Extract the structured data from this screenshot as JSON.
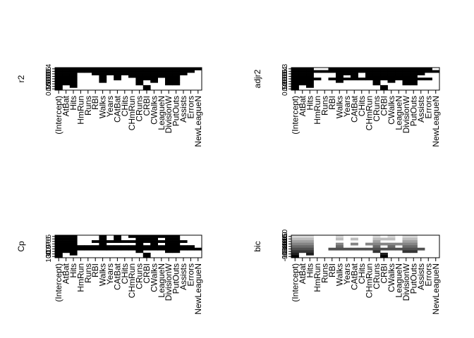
{
  "chart_data": [
    {
      "type": "heatmap",
      "ylabel": "r2",
      "xlabels": [
        "(Intercept)",
        "AtBat",
        "Hits",
        "HmRun",
        "Runs",
        "RBI",
        "Walks",
        "Years",
        "CAtBat",
        "CHits",
        "CHmRun",
        "CRuns",
        "CRBI",
        "CWalks",
        "LeagueN",
        "DivisionW",
        "PutOuts",
        "Assists",
        "Errors",
        "NewLeagueN"
      ],
      "ytick_labels": [
        "0.4",
        "0.5",
        "0.5",
        "0.5",
        "0.5",
        "0.5",
        "0.5",
        "0.5",
        "0.55"
      ],
      "shade_style": "binary-dark",
      "rows": [
        [
          1,
          1,
          1,
          1,
          1,
          1,
          1,
          1,
          1,
          1,
          1,
          1,
          1,
          1,
          1,
          1,
          1,
          1,
          1,
          1
        ],
        [
          1,
          1,
          1,
          1,
          1,
          1,
          1,
          1,
          1,
          1,
          1,
          1,
          1,
          1,
          1,
          1,
          1,
          1,
          1,
          0
        ],
        [
          1,
          1,
          1,
          0,
          0,
          1,
          1,
          1,
          1,
          1,
          1,
          1,
          1,
          1,
          1,
          1,
          1,
          1,
          0,
          0
        ],
        [
          1,
          1,
          1,
          0,
          0,
          0,
          1,
          0,
          1,
          0,
          1,
          1,
          1,
          1,
          1,
          1,
          1,
          0,
          0,
          0
        ],
        [
          1,
          1,
          1,
          0,
          0,
          0,
          1,
          0,
          1,
          0,
          0,
          1,
          1,
          1,
          0,
          1,
          1,
          0,
          0,
          0
        ],
        [
          1,
          1,
          1,
          0,
          0,
          0,
          1,
          0,
          0,
          0,
          0,
          1,
          0,
          1,
          0,
          1,
          1,
          0,
          0,
          0
        ],
        [
          1,
          1,
          1,
          0,
          0,
          0,
          0,
          0,
          0,
          0,
          0,
          1,
          0,
          0,
          0,
          1,
          1,
          0,
          0,
          0
        ],
        [
          1,
          0,
          1,
          0,
          0,
          0,
          0,
          0,
          0,
          0,
          0,
          0,
          1,
          0,
          0,
          0,
          0,
          0,
          0,
          0
        ],
        [
          1,
          0,
          0,
          0,
          0,
          0,
          0,
          0,
          0,
          0,
          0,
          0,
          1,
          0,
          0,
          0,
          0,
          0,
          0,
          0
        ]
      ]
    },
    {
      "type": "heatmap",
      "ylabel": "adjr2",
      "xlabels": [
        "(Intercept)",
        "AtBat",
        "Hits",
        "HmRun",
        "Runs",
        "RBI",
        "Walks",
        "Years",
        "CAtBat",
        "CHits",
        "CHmRun",
        "CRuns",
        "CRBI",
        "CWalks",
        "LeagueN",
        "DivisionW",
        "PutOuts",
        "Assists",
        "Errors",
        "NewLeagueN"
      ],
      "ytick_labels": [
        "0.3",
        "0.4",
        "0.5",
        "0.5",
        "0.5",
        "0.5",
        "0.5",
        "0.5",
        "0.52"
      ],
      "shade_style": "binary-dark",
      "rows": [
        [
          1,
          1,
          1,
          0,
          0,
          1,
          1,
          1,
          1,
          1,
          1,
          1,
          1,
          1,
          1,
          1,
          1,
          1,
          1,
          0
        ],
        [
          1,
          1,
          1,
          1,
          1,
          1,
          1,
          1,
          1,
          1,
          1,
          1,
          1,
          1,
          1,
          1,
          1,
          1,
          1,
          1
        ],
        [
          1,
          1,
          1,
          0,
          0,
          0,
          1,
          1,
          1,
          0,
          1,
          1,
          1,
          1,
          1,
          1,
          1,
          1,
          0,
          0
        ],
        [
          1,
          1,
          1,
          0,
          0,
          0,
          1,
          0,
          1,
          0,
          1,
          1,
          1,
          1,
          1,
          1,
          1,
          0,
          0,
          0
        ],
        [
          1,
          1,
          1,
          1,
          0,
          1,
          1,
          1,
          1,
          1,
          1,
          1,
          1,
          1,
          1,
          1,
          1,
          1,
          1,
          0
        ],
        [
          1,
          1,
          1,
          0,
          0,
          0,
          1,
          0,
          0,
          0,
          0,
          1,
          0,
          1,
          0,
          1,
          1,
          0,
          0,
          0
        ],
        [
          1,
          1,
          1,
          0,
          0,
          0,
          0,
          0,
          0,
          0,
          0,
          1,
          0,
          0,
          0,
          1,
          1,
          0,
          0,
          0
        ],
        [
          1,
          0,
          1,
          0,
          0,
          0,
          0,
          0,
          0,
          0,
          0,
          0,
          1,
          0,
          0,
          0,
          0,
          0,
          0,
          0
        ],
        [
          1,
          0,
          0,
          0,
          0,
          0,
          0,
          0,
          0,
          0,
          0,
          0,
          1,
          0,
          0,
          0,
          0,
          0,
          0,
          0
        ]
      ]
    },
    {
      "type": "heatmap",
      "ylabel": "Cp",
      "xlabels": [
        "(Intercept)",
        "AtBat",
        "Hits",
        "HmRun",
        "Runs",
        "RBI",
        "Walks",
        "Years",
        "CAtBat",
        "CHits",
        "CHmRun",
        "CRuns",
        "CRBI",
        "CWalks",
        "LeagueN",
        "DivisionW",
        "PutOuts",
        "Assists",
        "Errors",
        "NewLeagueN"
      ],
      "ytick_labels": [
        "5",
        "6",
        "6",
        "7",
        "9",
        "10",
        "10",
        "30",
        "100"
      ],
      "shade_style": "binary-dark",
      "rows": [
        [
          1,
          1,
          1,
          0,
          0,
          0,
          1,
          0,
          1,
          0,
          1,
          1,
          1,
          1,
          1,
          1,
          1,
          0,
          0,
          0
        ],
        [
          1,
          1,
          1,
          0,
          0,
          0,
          1,
          0,
          1,
          0,
          0,
          1,
          1,
          1,
          0,
          1,
          1,
          0,
          0,
          0
        ],
        [
          1,
          1,
          1,
          0,
          0,
          1,
          1,
          1,
          1,
          1,
          1,
          1,
          1,
          1,
          1,
          1,
          1,
          1,
          0,
          0
        ],
        [
          1,
          1,
          1,
          0,
          0,
          0,
          1,
          0,
          0,
          0,
          0,
          1,
          0,
          1,
          0,
          1,
          1,
          0,
          0,
          0
        ],
        [
          1,
          1,
          1,
          1,
          1,
          1,
          1,
          1,
          1,
          1,
          1,
          1,
          1,
          1,
          1,
          1,
          1,
          1,
          1,
          0
        ],
        [
          1,
          1,
          1,
          1,
          1,
          1,
          1,
          1,
          1,
          1,
          1,
          1,
          1,
          1,
          1,
          1,
          1,
          1,
          1,
          1
        ],
        [
          1,
          1,
          1,
          0,
          0,
          0,
          0,
          0,
          0,
          0,
          0,
          1,
          0,
          0,
          0,
          1,
          1,
          0,
          0,
          0
        ],
        [
          1,
          0,
          1,
          0,
          0,
          0,
          0,
          0,
          0,
          0,
          0,
          0,
          1,
          0,
          0,
          0,
          0,
          0,
          0,
          0
        ],
        [
          1,
          0,
          0,
          0,
          0,
          0,
          0,
          0,
          0,
          0,
          0,
          0,
          1,
          0,
          0,
          0,
          0,
          0,
          0,
          0
        ]
      ]
    },
    {
      "type": "heatmap",
      "ylabel": "bic",
      "xlabels": [
        "(Intercept)",
        "AtBat",
        "Hits",
        "HmRun",
        "Runs",
        "RBI",
        "Walks",
        "Years",
        "CAtBat",
        "CHits",
        "CHmRun",
        "CRuns",
        "CRBI",
        "CWalks",
        "LeagueN",
        "DivisionW",
        "PutOuts",
        "Assists",
        "Errors",
        "NewLeagueN"
      ],
      "ytick_labels": [
        "-150",
        "-140",
        "-140",
        "-140",
        "-140",
        "-140",
        "-130",
        "-110",
        "-90"
      ],
      "shade_style": "graded-gray",
      "rows": [
        [
          1,
          1,
          1,
          0,
          0,
          0,
          1,
          0,
          0,
          0,
          0,
          1,
          0,
          1,
          0,
          1,
          1,
          0,
          0,
          0
        ],
        [
          1,
          1,
          1,
          0,
          0,
          0,
          1,
          0,
          1,
          0,
          0,
          1,
          1,
          1,
          0,
          1,
          1,
          0,
          0,
          0
        ],
        [
          1,
          1,
          1,
          0,
          0,
          0,
          0,
          0,
          0,
          0,
          0,
          1,
          0,
          0,
          0,
          1,
          1,
          0,
          0,
          0
        ],
        [
          1,
          1,
          1,
          0,
          0,
          0,
          1,
          0,
          1,
          0,
          1,
          1,
          1,
          1,
          1,
          1,
          1,
          0,
          0,
          0
        ],
        [
          1,
          1,
          1,
          0,
          0,
          0,
          1,
          0,
          0,
          0,
          0,
          1,
          0,
          1,
          0,
          1,
          1,
          0,
          0,
          0
        ],
        [
          1,
          1,
          1,
          0,
          0,
          1,
          1,
          1,
          1,
          1,
          1,
          1,
          1,
          1,
          1,
          1,
          1,
          1,
          0,
          0
        ],
        [
          1,
          1,
          1,
          0,
          0,
          0,
          0,
          0,
          0,
          0,
          0,
          1,
          0,
          0,
          0,
          1,
          1,
          0,
          0,
          0
        ],
        [
          1,
          0,
          1,
          0,
          0,
          0,
          0,
          0,
          0,
          0,
          0,
          0,
          1,
          0,
          0,
          0,
          0,
          0,
          0,
          0
        ],
        [
          1,
          0,
          0,
          0,
          0,
          0,
          0,
          0,
          0,
          0,
          0,
          0,
          1,
          0,
          0,
          0,
          0,
          0,
          0,
          0
        ]
      ]
    }
  ]
}
